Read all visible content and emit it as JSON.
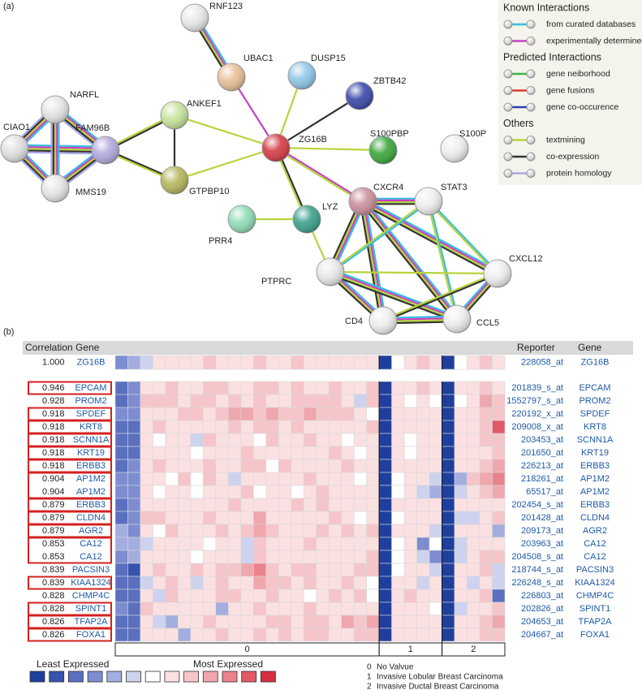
{
  "panel_a": {
    "label": "(a)",
    "nodes": [
      "RNF123",
      "UBAC1",
      "DUSP15",
      "ZBTB42",
      "ANKEF1",
      "NARFL",
      "CIAO1",
      "FAM96B",
      "ZG16B",
      "S100PBP",
      "S100P",
      "MMS19",
      "GTPBP10",
      "CXCR4",
      "STAT3",
      "LYZ",
      "PRR4",
      "PTPRC",
      "CXCL12",
      "CD4",
      "CCL5"
    ],
    "legend": [
      {
        "title": "Known Interactions",
        "items": [
          {
            "label": "from curated databases",
            "color": "#37bde0"
          },
          {
            "label": "experimentally determined",
            "color": "#c840c0"
          }
        ]
      },
      {
        "title": "Predicted Interactions",
        "items": [
          {
            "label": "gene neiborhood",
            "color": "#3cb44a"
          },
          {
            "label": "gene fusions",
            "color": "#e0382c"
          },
          {
            "label": "gene co-occurence",
            "color": "#2a3fb0"
          }
        ]
      },
      {
        "title": "Others",
        "items": [
          {
            "label": "textmining",
            "color": "#b6d43c"
          },
          {
            "label": "co-expression",
            "color": "#333333"
          },
          {
            "label": "protein homology",
            "color": "#a8a6e6"
          }
        ]
      }
    ]
  },
  "panel_b": {
    "label": "(b)",
    "header": {
      "left": "Correlation Gene",
      "reporter": "Reporter",
      "gene": "Gene"
    },
    "color_scale": [
      "#1f3f9c",
      "#3553ad",
      "#5a6fc0",
      "#7d8dd0",
      "#a3addf",
      "#cdd2ef",
      "#ffffff",
      "#fbe0e2",
      "#f6c5c9",
      "#f0a6ad",
      "#e9838c",
      "#e05a66",
      "#d42f3e"
    ],
    "scale_labels": {
      "low": "Least Expressed",
      "high": "Most Expressed"
    },
    "column_groups": [
      "0",
      "0",
      "0",
      "0",
      "0",
      "0",
      "0",
      "0",
      "0",
      "0",
      "0",
      "0",
      "0",
      "0",
      "0",
      "0",
      "0",
      "0",
      "0",
      "0",
      "0",
      "1",
      "1",
      "1",
      "1",
      "1",
      "2",
      "2",
      "2",
      "2",
      "2"
    ],
    "notes": [
      {
        "key": "0",
        "text": "No Valvue"
      },
      {
        "key": "1",
        "text": "Invasive Lobular Breast Carcinoma"
      },
      {
        "key": "2",
        "text": "Invasive Ductal Breast Carcinoma"
      }
    ],
    "rows": [
      {
        "correlation": "1.000",
        "gene": "ZG16B",
        "reporter": "228058_at",
        "reporter_gene": "ZG16B",
        "boxed": false,
        "levels": [
          -3,
          -2,
          -1,
          1,
          1,
          1,
          1,
          2,
          1,
          1,
          1,
          2,
          1,
          1,
          2,
          1,
          1,
          1,
          1,
          1,
          1,
          -6,
          0,
          1,
          2,
          1,
          -6,
          0,
          1,
          2,
          1
        ]
      },
      {
        "correlation": "0.946",
        "gene": "EPCAM",
        "reporter": "201839_s_at",
        "reporter_gene": "EPCAM",
        "boxed": true,
        "levels": [
          -4,
          -3,
          1,
          1,
          2,
          1,
          1,
          2,
          2,
          1,
          1,
          2,
          2,
          1,
          2,
          1,
          1,
          2,
          1,
          1,
          2,
          -6,
          1,
          1,
          2,
          1,
          -6,
          1,
          1,
          2,
          1
        ]
      },
      {
        "correlation": "0.928",
        "gene": "PROM2",
        "reporter": "1552797_s_at",
        "reporter_gene": "PROM2",
        "boxed": false,
        "levels": [
          -4,
          -3,
          2,
          2,
          2,
          1,
          2,
          2,
          1,
          2,
          1,
          2,
          1,
          1,
          2,
          2,
          2,
          2,
          1,
          -1,
          2,
          -6,
          1,
          0,
          1,
          0,
          -6,
          0,
          1,
          3,
          2
        ]
      },
      {
        "correlation": "0.918",
        "gene": "SPDEF",
        "reporter": "220192_x_at",
        "reporter_gene": "SPDEF",
        "boxed": true,
        "levels": [
          -3,
          -3,
          1,
          1,
          1,
          2,
          2,
          1,
          2,
          3,
          3,
          2,
          3,
          2,
          2,
          3,
          2,
          2,
          2,
          1,
          0,
          -6,
          1,
          1,
          1,
          1,
          -6,
          1,
          1,
          2,
          2
        ]
      },
      {
        "correlation": "0.918",
        "gene": "KRT8",
        "reporter": "209008_x_at",
        "reporter_gene": "KRT8",
        "boxed": true,
        "levels": [
          -4,
          -4,
          1,
          2,
          1,
          1,
          1,
          1,
          1,
          2,
          1,
          2,
          2,
          1,
          2,
          1,
          1,
          1,
          1,
          1,
          2,
          -6,
          1,
          1,
          1,
          1,
          -6,
          1,
          1,
          2,
          5
        ]
      },
      {
        "correlation": "0.918",
        "gene": "SCNN1A",
        "reporter": "203453_at",
        "reporter_gene": "SCNN1A",
        "boxed": true,
        "levels": [
          -4,
          -4,
          1,
          0,
          1,
          1,
          -1,
          2,
          1,
          1,
          1,
          0,
          2,
          1,
          1,
          2,
          1,
          1,
          0,
          1,
          1,
          -6,
          1,
          0,
          1,
          1,
          -6,
          1,
          1,
          2,
          2
        ]
      },
      {
        "correlation": "0.918",
        "gene": "KRT19",
        "reporter": "201650_at",
        "reporter_gene": "KRT19",
        "boxed": true,
        "levels": [
          -4,
          -4,
          1,
          1,
          1,
          1,
          0,
          1,
          1,
          1,
          2,
          1,
          1,
          1,
          1,
          1,
          1,
          2,
          1,
          0,
          1,
          -6,
          1,
          0,
          1,
          1,
          -6,
          1,
          1,
          1,
          2
        ]
      },
      {
        "correlation": "0.918",
        "gene": "ERBB3",
        "reporter": "226213_at",
        "reporter_gene": "ERBB3",
        "boxed": true,
        "levels": [
          -4,
          -3,
          1,
          2,
          1,
          1,
          1,
          2,
          1,
          1,
          2,
          2,
          0,
          2,
          1,
          1,
          1,
          1,
          2,
          1,
          1,
          -6,
          1,
          1,
          1,
          1,
          -6,
          1,
          1,
          2,
          3
        ]
      },
      {
        "correlation": "0.904",
        "gene": "AP1M2",
        "reporter": "218261_at",
        "reporter_gene": "AP1M2",
        "boxed": true,
        "levels": [
          -3,
          -3,
          1,
          1,
          0,
          2,
          0,
          2,
          1,
          -1,
          1,
          1,
          1,
          1,
          1,
          2,
          1,
          1,
          1,
          0,
          1,
          -6,
          0,
          1,
          1,
          -1,
          -6,
          -2,
          2,
          3,
          4
        ]
      },
      {
        "correlation": "0.904",
        "gene": "AP1M2",
        "reporter": "65517_at",
        "reporter_gene": "AP1M2",
        "boxed": true,
        "levels": [
          -3,
          -3,
          1,
          0,
          1,
          1,
          0,
          1,
          1,
          1,
          2,
          0,
          1,
          1,
          0,
          1,
          2,
          1,
          1,
          1,
          1,
          -6,
          0,
          1,
          -1,
          -2,
          -6,
          -1,
          1,
          2,
          3
        ]
      },
      {
        "correlation": "0.879",
        "gene": "ERBB3",
        "reporter": "202454_s_at",
        "reporter_gene": "ERBB3",
        "boxed": true,
        "levels": [
          -4,
          -3,
          1,
          1,
          1,
          1,
          1,
          1,
          1,
          2,
          1,
          1,
          1,
          1,
          2,
          1,
          2,
          1,
          1,
          1,
          1,
          -6,
          1,
          1,
          1,
          1,
          -6,
          1,
          1,
          1,
          1
        ]
      },
      {
        "correlation": "0.879",
        "gene": "CLDN4",
        "reporter": "201428_at",
        "reporter_gene": "CLDN4",
        "boxed": true,
        "levels": [
          -4,
          -3,
          2,
          2,
          1,
          1,
          1,
          2,
          1,
          1,
          1,
          3,
          1,
          1,
          1,
          1,
          1,
          2,
          1,
          0,
          1,
          -6,
          0,
          1,
          1,
          1,
          -6,
          -1,
          -1,
          1,
          2
        ]
      },
      {
        "correlation": "0.879",
        "gene": "AGR2",
        "reporter": "209173_at",
        "reporter_gene": "AGR2",
        "boxed": true,
        "levels": [
          -2,
          -3,
          1,
          0,
          2,
          1,
          1,
          1,
          2,
          1,
          2,
          3,
          2,
          1,
          1,
          1,
          2,
          1,
          2,
          1,
          2,
          -6,
          1,
          1,
          1,
          -1,
          -6,
          1,
          1,
          1,
          -2
        ]
      },
      {
        "correlation": "0.853",
        "gene": "CA12",
        "reporter": "203963_at",
        "reporter_gene": "CA12",
        "boxed": true,
        "levels": [
          -2,
          -2,
          -1,
          1,
          1,
          1,
          1,
          0,
          1,
          1,
          -1,
          2,
          1,
          1,
          1,
          2,
          1,
          1,
          1,
          1,
          1,
          -6,
          0,
          1,
          -3,
          0,
          -6,
          -1,
          1,
          1,
          1
        ]
      },
      {
        "correlation": "0.853",
        "gene": "CA12",
        "reporter": "204508_s_at",
        "reporter_gene": "CA12",
        "boxed": true,
        "levels": [
          -3,
          -2,
          1,
          1,
          1,
          1,
          0,
          1,
          1,
          1,
          -1,
          2,
          1,
          1,
          1,
          1,
          1,
          1,
          1,
          1,
          2,
          -6,
          0,
          1,
          -1,
          -3,
          -6,
          -1,
          1,
          2,
          2
        ]
      },
      {
        "correlation": "0.839",
        "gene": "PACSIN3",
        "reporter": "218744_s_at",
        "reporter_gene": "PACSIN3",
        "boxed": false,
        "levels": [
          -4,
          -5,
          1,
          2,
          1,
          1,
          2,
          1,
          2,
          2,
          3,
          4,
          2,
          1,
          2,
          2,
          1,
          1,
          1,
          2,
          2,
          -6,
          0,
          1,
          1,
          -1,
          -6,
          1,
          1,
          2,
          -1
        ]
      },
      {
        "correlation": "0.839",
        "gene": "KIAA1324",
        "reporter": "226248_s_at",
        "reporter_gene": "KIAA1324",
        "boxed": true,
        "levels": [
          -4,
          -4,
          -1,
          1,
          2,
          1,
          -1,
          1,
          2,
          1,
          1,
          3,
          2,
          2,
          1,
          2,
          1,
          1,
          2,
          1,
          0,
          -6,
          1,
          1,
          -1,
          1,
          -6,
          1,
          -1,
          1,
          -1
        ]
      },
      {
        "correlation": "0.828",
        "gene": "CHMP4C",
        "reporter": "226803_at",
        "reporter_gene": "CHMP4C",
        "boxed": false,
        "levels": [
          -4,
          -4,
          1,
          -1,
          2,
          1,
          1,
          1,
          2,
          2,
          1,
          1,
          2,
          1,
          1,
          0,
          1,
          2,
          1,
          2,
          0,
          -6,
          1,
          2,
          1,
          1,
          -6,
          1,
          1,
          2,
          -4
        ]
      },
      {
        "correlation": "0.828",
        "gene": "SPINT1",
        "reporter": "202826_at",
        "reporter_gene": "SPINT1",
        "boxed": true,
        "levels": [
          -3,
          -4,
          2,
          1,
          1,
          1,
          1,
          1,
          -2,
          1,
          1,
          2,
          1,
          1,
          1,
          2,
          1,
          1,
          1,
          1,
          1,
          -6,
          1,
          1,
          1,
          0,
          -6,
          -1,
          1,
          1,
          2
        ]
      },
      {
        "correlation": "0.826",
        "gene": "TFAP2A",
        "reporter": "204653_at",
        "reporter_gene": "TFAP2A",
        "boxed": true,
        "levels": [
          -4,
          -4,
          1,
          -1,
          -2,
          1,
          1,
          2,
          1,
          1,
          1,
          1,
          2,
          2,
          1,
          2,
          2,
          1,
          3,
          2,
          3,
          -6,
          1,
          1,
          1,
          1,
          -6,
          1,
          1,
          2,
          3
        ]
      },
      {
        "correlation": "0.826",
        "gene": "FOXA1",
        "reporter": "204667_at",
        "reporter_gene": "FOXA1",
        "boxed": true,
        "levels": [
          -4,
          -4,
          1,
          1,
          1,
          -2,
          1,
          1,
          2,
          1,
          1,
          2,
          1,
          2,
          1,
          2,
          2,
          1,
          1,
          2,
          2,
          -6,
          1,
          1,
          1,
          1,
          -6,
          1,
          1,
          2,
          2
        ]
      }
    ]
  }
}
